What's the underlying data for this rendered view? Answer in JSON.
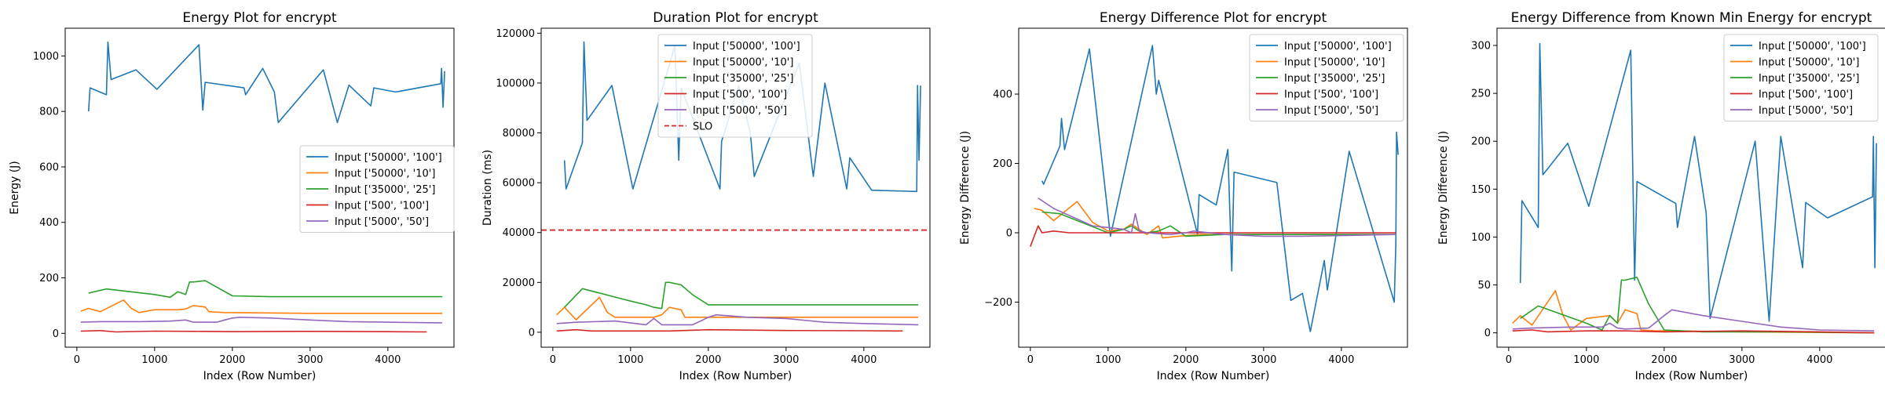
{
  "figure": {
    "panels": [
      {
        "title": "Energy Plot for encrypt"
      },
      {
        "title": "Duration Plot for encrypt"
      },
      {
        "title": "Energy Difference Plot for encrypt"
      },
      {
        "title": "Energy Difference from Known Min Energy for encrypt"
      }
    ]
  },
  "colors": {
    "series": [
      "#1f77b4",
      "#ff7f0e",
      "#2ca02c",
      "#d62728",
      "#9467bd"
    ],
    "slo": "#d62728"
  },
  "chart_data": [
    {
      "type": "line",
      "title": "Energy Plot for encrypt",
      "xlabel": "Index (Row Number)",
      "ylabel": "Energy (J)",
      "xlim": [
        -150,
        4850
      ],
      "ylim": [
        -50,
        1100
      ],
      "xticks": [
        0,
        1000,
        2000,
        3000,
        4000
      ],
      "yticks": [
        0,
        200,
        400,
        600,
        800,
        1000
      ],
      "legend_position": "center-right",
      "series": [
        {
          "name": "Input ['50000', '100']",
          "x": [
            150,
            170,
            380,
            400,
            440,
            760,
            1030,
            1570,
            1620,
            1650,
            2150,
            2170,
            2390,
            2540,
            2590,
            3170,
            3350,
            3500,
            3780,
            3820,
            4100,
            4680,
            4690,
            4710,
            4730
          ],
          "y": [
            800,
            885,
            860,
            1050,
            915,
            950,
            880,
            1040,
            805,
            905,
            885,
            860,
            955,
            870,
            760,
            950,
            760,
            895,
            820,
            885,
            870,
            900,
            955,
            815,
            945
          ]
        },
        {
          "name": "Input ['50000', '10']",
          "x": [
            50,
            150,
            300,
            600,
            700,
            800,
            1000,
            1300,
            1400,
            1500,
            1650,
            1700,
            1900,
            2200,
            3000,
            4700
          ],
          "y": [
            80,
            90,
            78,
            120,
            90,
            75,
            85,
            85,
            88,
            100,
            95,
            78,
            75,
            74,
            72,
            72
          ]
        },
        {
          "name": "Input ['35000', '25']",
          "x": [
            150,
            380,
            1000,
            1200,
            1300,
            1400,
            1450,
            1500,
            1650,
            2000,
            2500,
            3500,
            4700
          ],
          "y": [
            145,
            160,
            140,
            130,
            150,
            140,
            185,
            185,
            190,
            135,
            132,
            132,
            132
          ]
        },
        {
          "name": "Input ['500', '100']",
          "x": [
            50,
            300,
            500,
            1000,
            1500,
            2000,
            3000,
            4000,
            4500
          ],
          "y": [
            8,
            10,
            5,
            8,
            7,
            6,
            7,
            6,
            5
          ]
        },
        {
          "name": "Input ['5000', '50']",
          "x": [
            50,
            300,
            800,
            1200,
            1400,
            1500,
            1800,
            1900,
            2000,
            2100,
            2500,
            3000,
            3500,
            4000,
            4700
          ],
          "y": [
            40,
            42,
            42,
            44,
            48,
            40,
            40,
            48,
            55,
            58,
            55,
            48,
            42,
            40,
            38
          ]
        }
      ]
    },
    {
      "type": "line",
      "title": "Duration Plot for encrypt",
      "xlabel": "Index (Row Number)",
      "ylabel": "Duration (ms)",
      "xlim": [
        -150,
        4850
      ],
      "ylim": [
        -6000,
        122000
      ],
      "xticks": [
        0,
        1000,
        2000,
        3000,
        4000
      ],
      "yticks": [
        0,
        20000,
        40000,
        60000,
        80000,
        100000,
        120000
      ],
      "legend_position": "top-center",
      "slo": {
        "name": "SLO",
        "value": 41000
      },
      "series": [
        {
          "name": "Input ['50000', '100']",
          "x": [
            150,
            170,
            380,
            400,
            440,
            760,
            1030,
            1570,
            1620,
            1650,
            2150,
            2170,
            2390,
            2540,
            2590,
            3170,
            3350,
            3500,
            3780,
            3820,
            4100,
            4680,
            4690,
            4710,
            4730
          ],
          "y": [
            69000,
            57500,
            76000,
            116500,
            85000,
            99000,
            57500,
            115000,
            69000,
            98000,
            57500,
            76500,
            99000,
            80000,
            62500,
            108000,
            62500,
            100000,
            57500,
            70000,
            57000,
            56500,
            99000,
            69000,
            99000
          ]
        },
        {
          "name": "Input ['50000', '10']",
          "x": [
            50,
            150,
            300,
            600,
            700,
            800,
            1000,
            1300,
            1400,
            1500,
            1650,
            1700,
            1900,
            2200,
            3000,
            4700
          ],
          "y": [
            7000,
            10000,
            5000,
            14000,
            8000,
            6000,
            6000,
            6000,
            7000,
            10000,
            9000,
            6000,
            6000,
            6000,
            6000,
            6000
          ]
        },
        {
          "name": "Input ['35000', '25']",
          "x": [
            150,
            380,
            1000,
            1200,
            1300,
            1400,
            1450,
            1500,
            1650,
            1800,
            2000,
            2500,
            3500,
            4700
          ],
          "y": [
            10000,
            17500,
            12500,
            11000,
            10000,
            9500,
            20000,
            20000,
            19000,
            15000,
            11000,
            11000,
            11000,
            11000
          ]
        },
        {
          "name": "Input ['500', '100']",
          "x": [
            50,
            300,
            500,
            1000,
            1500,
            2000,
            3000,
            4000,
            4500
          ],
          "y": [
            500,
            1000,
            500,
            500,
            500,
            1000,
            700,
            600,
            500
          ]
        },
        {
          "name": "Input ['5000', '50']",
          "x": [
            50,
            300,
            800,
            1200,
            1300,
            1400,
            1500,
            1800,
            2000,
            2100,
            2500,
            3000,
            3500,
            4000,
            4700
          ],
          "y": [
            3500,
            4000,
            4500,
            3000,
            5500,
            3000,
            3000,
            3000,
            6000,
            7000,
            6000,
            5500,
            4000,
            3500,
            3000
          ]
        }
      ]
    },
    {
      "type": "line",
      "title": "Energy Difference Plot for encrypt",
      "xlabel": "Index (Row Number)",
      "ylabel": "Energy Difference (J)",
      "xlim": [
        -150,
        4850
      ],
      "ylim": [
        -330,
        590
      ],
      "xticks": [
        0,
        1000,
        2000,
        3000,
        4000
      ],
      "yticks": [
        -200,
        0,
        200,
        400
      ],
      "legend_position": "top-right",
      "series": [
        {
          "name": "Input ['50000', '100']",
          "x": [
            150,
            170,
            380,
            400,
            440,
            760,
            1030,
            1570,
            1620,
            1650,
            2150,
            2170,
            2390,
            2540,
            2590,
            2620,
            3170,
            3350,
            3500,
            3600,
            3780,
            3820,
            4100,
            4680,
            4700,
            4710,
            4730
          ],
          "y": [
            150,
            140,
            250,
            330,
            240,
            530,
            -10,
            540,
            400,
            440,
            -5,
            110,
            80,
            240,
            -110,
            175,
            145,
            -195,
            -175,
            -285,
            -80,
            -165,
            235,
            -200,
            -30,
            290,
            225
          ]
        },
        {
          "name": "Input ['50000', '10']",
          "x": [
            50,
            150,
            300,
            600,
            700,
            800,
            1000,
            1200,
            1300,
            1500,
            1650,
            1700,
            1900,
            2200,
            3000,
            4700
          ],
          "y": [
            70,
            65,
            35,
            90,
            60,
            30,
            5,
            10,
            25,
            -5,
            20,
            -15,
            -10,
            -5,
            -5,
            -5
          ]
        },
        {
          "name": "Input ['35000', '25']",
          "x": [
            150,
            380,
            1000,
            1200,
            1300,
            1400,
            1500,
            1650,
            1800,
            2000,
            2500,
            3500,
            4700
          ],
          "y": [
            60,
            55,
            0,
            10,
            20,
            5,
            0,
            5,
            20,
            -10,
            -5,
            -5,
            -5
          ]
        },
        {
          "name": "Input ['500', '100']",
          "x": [
            0,
            100,
            150,
            300,
            500,
            1000,
            1500,
            2000,
            3000,
            4000,
            4700
          ],
          "y": [
            -40,
            20,
            0,
            5,
            0,
            0,
            0,
            0,
            0,
            0,
            0
          ]
        },
        {
          "name": "Input ['5000', '50']",
          "x": [
            100,
            300,
            800,
            1200,
            1300,
            1350,
            1400,
            1500,
            1800,
            2000,
            2100,
            2500,
            3000,
            3500,
            4000,
            4700
          ],
          "y": [
            100,
            70,
            20,
            10,
            0,
            55,
            5,
            0,
            -5,
            0,
            5,
            -5,
            -10,
            -10,
            -8,
            -5
          ]
        }
      ]
    },
    {
      "type": "line",
      "title": "Energy Difference from Known Min Energy for encrypt",
      "xlabel": "Index (Row Number)",
      "ylabel": "Energy Difference (J)",
      "xlim": [
        -150,
        4850
      ],
      "ylim": [
        -15,
        318
      ],
      "xticks": [
        0,
        1000,
        2000,
        3000,
        4000
      ],
      "yticks": [
        0,
        50,
        100,
        150,
        200,
        250,
        300
      ],
      "legend_position": "top-right",
      "series": [
        {
          "name": "Input ['50000', '100']",
          "x": [
            150,
            170,
            380,
            400,
            440,
            760,
            1030,
            1570,
            1620,
            1650,
            2150,
            2170,
            2390,
            2540,
            2590,
            3170,
            3350,
            3500,
            3780,
            3820,
            4100,
            4680,
            4690,
            4710,
            4730
          ],
          "y": [
            52,
            138,
            110,
            302,
            165,
            198,
            132,
            295,
            55,
            158,
            135,
            110,
            205,
            125,
            15,
            200,
            12,
            205,
            68,
            136,
            120,
            142,
            205,
            68,
            198
          ]
        },
        {
          "name": "Input ['50000', '10']",
          "x": [
            50,
            150,
            300,
            600,
            700,
            800,
            1000,
            1300,
            1400,
            1500,
            1650,
            1700,
            1900,
            2200,
            3000,
            4700
          ],
          "y": [
            10,
            18,
            8,
            44,
            18,
            3,
            15,
            18,
            10,
            24,
            20,
            3,
            2,
            2,
            1,
            0
          ]
        },
        {
          "name": "Input ['35000', '25']",
          "x": [
            150,
            380,
            1000,
            1200,
            1300,
            1400,
            1450,
            1500,
            1650,
            1800,
            2000,
            2500,
            3500,
            4700
          ],
          "y": [
            15,
            28,
            10,
            3,
            18,
            10,
            55,
            55,
            58,
            30,
            3,
            1,
            1,
            0
          ]
        },
        {
          "name": "Input ['500', '100']",
          "x": [
            50,
            300,
            500,
            1000,
            1500,
            2000,
            3000,
            4000,
            4700
          ],
          "y": [
            2,
            3,
            1,
            2,
            2,
            1,
            2,
            1,
            0
          ]
        },
        {
          "name": "Input ['5000', '50']",
          "x": [
            50,
            300,
            800,
            1200,
            1300,
            1400,
            1500,
            1800,
            2000,
            2100,
            2500,
            3000,
            3500,
            4000,
            4700
          ],
          "y": [
            4,
            5,
            6,
            6,
            10,
            5,
            4,
            5,
            18,
            24,
            18,
            12,
            6,
            3,
            2
          ]
        }
      ]
    }
  ]
}
